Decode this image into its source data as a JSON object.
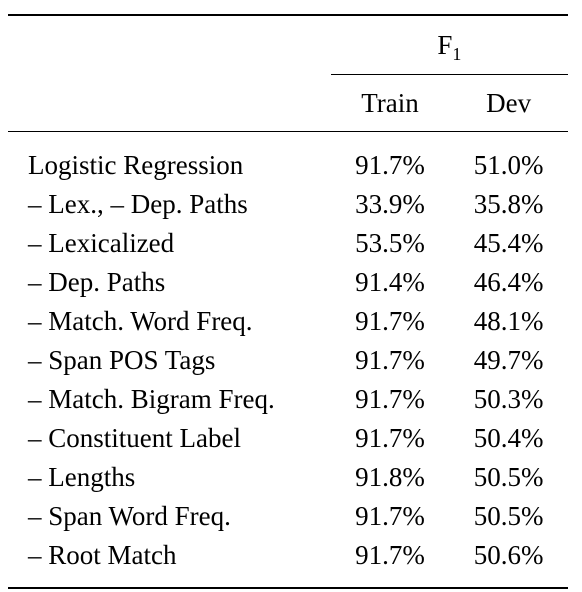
{
  "table": {
    "group_header": {
      "label": "F",
      "subscript": "1"
    },
    "columns": [
      "Train",
      "Dev"
    ],
    "rows": [
      {
        "feature": "Logistic Regression",
        "train": "91.7%",
        "dev": "51.0%"
      },
      {
        "feature": "– Lex., – Dep. Paths",
        "train": "33.9%",
        "dev": "35.8%"
      },
      {
        "feature": "– Lexicalized",
        "train": "53.5%",
        "dev": "45.4%"
      },
      {
        "feature": "– Dep. Paths",
        "train": "91.4%",
        "dev": "46.4%"
      },
      {
        "feature": "– Match. Word Freq.",
        "train": "91.7%",
        "dev": "48.1%"
      },
      {
        "feature": "– Span POS Tags",
        "train": "91.7%",
        "dev": "49.7%"
      },
      {
        "feature": "– Match. Bigram Freq.",
        "train": "91.7%",
        "dev": "50.3%"
      },
      {
        "feature": "– Constituent Label",
        "train": "91.7%",
        "dev": "50.4%"
      },
      {
        "feature": "– Lengths",
        "train": "91.8%",
        "dev": "50.5%"
      },
      {
        "feature": "– Span Word Freq.",
        "train": "91.7%",
        "dev": "50.5%"
      },
      {
        "feature": "– Root Match",
        "train": "91.7%",
        "dev": "50.6%"
      }
    ]
  }
}
